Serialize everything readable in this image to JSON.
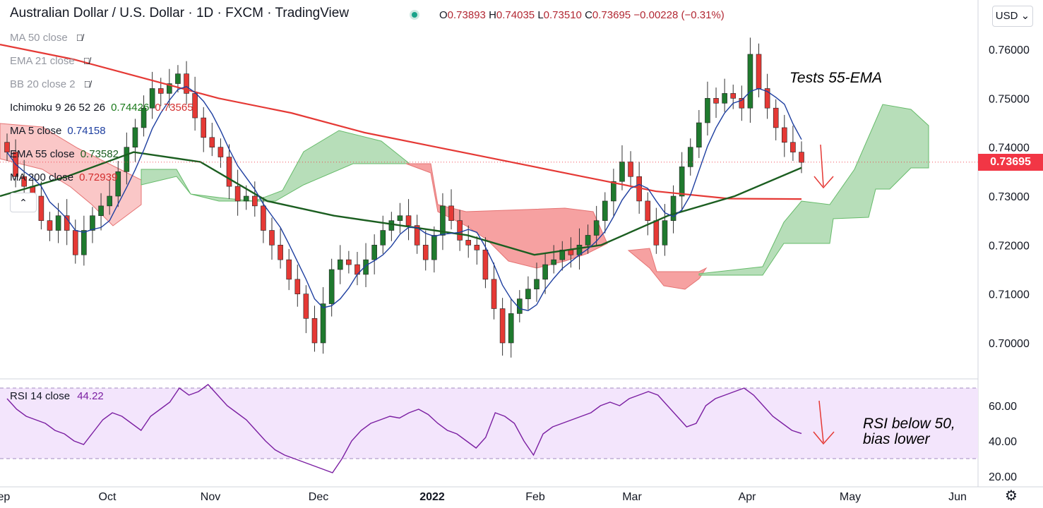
{
  "header": {
    "title": "Australian Dollar / U.S. Dollar · 1D · FXCM · TradingView",
    "ohlc": [
      {
        "k": "O",
        "v": "0.73893"
      },
      {
        "k": "H",
        "v": "0.74035"
      },
      {
        "k": "L",
        "v": "0.73510"
      },
      {
        "k": "C",
        "v": "0.73695"
      }
    ],
    "change": "−0.00228 (−0.31%)"
  },
  "legends": [
    {
      "label": "MA 50 close",
      "hidden": true,
      "icon": "eye-off-icon"
    },
    {
      "label": "EMA 21 close",
      "hidden": true,
      "icon": "eye-off-icon"
    },
    {
      "label": "BB 20 close 2",
      "hidden": true,
      "icon": "eye-off-icon"
    },
    {
      "label": "Ichimoku 9 26 52 26",
      "values": [
        {
          "v": "0.74426",
          "color": "#1b7a1b"
        },
        {
          "v": "0.73565",
          "color": "#d32f2f"
        }
      ]
    },
    {
      "label": "MA 5 close",
      "values": [
        {
          "v": "0.74158",
          "color": "#1e3fa0"
        }
      ]
    },
    {
      "label": "EMA 55 close",
      "values": [
        {
          "v": "0.73582",
          "color": "#1b5e20"
        }
      ]
    },
    {
      "label": "MA 200 close",
      "values": [
        {
          "v": "0.72939",
          "color": "#d32f2f"
        }
      ]
    }
  ],
  "currency_button": "USD",
  "collapse_icon": "chevron-up-icon",
  "settings_icon": "gear-icon",
  "last_price": "0.73695",
  "annotations": {
    "price": "Tests 55-EMA",
    "rsi_line1": "RSI below 50,",
    "rsi_line2": "bias lower"
  },
  "rsi_legend": {
    "label": "RSI 14 close",
    "value": "44.22"
  },
  "colors": {
    "up": "#1f7a2e",
    "down": "#e53935",
    "ma200": "#e53935",
    "ema55": "#1b5e20",
    "ma5": "#1e3fa0",
    "rsi": "#7b1fa2",
    "cloud_bull": "#a5d6a7",
    "cloud_bear": "#f48a8a"
  },
  "chart_data": [
    {
      "type": "candlestick",
      "title": "Australian Dollar / U.S. Dollar",
      "x_ticks": [
        "Sep",
        "Oct",
        "Nov",
        "Dec",
        "2022",
        "Feb",
        "Mar",
        "Apr",
        "May",
        "Jun"
      ],
      "y_ticks": [
        "0.76000",
        "0.75000",
        "0.74000",
        "0.73000",
        "0.72000",
        "0.71000",
        "0.70000"
      ],
      "ylim": [
        0.695,
        0.765
      ],
      "close_path": [
        0.739,
        0.734,
        0.732,
        0.73,
        0.725,
        0.723,
        0.726,
        0.723,
        0.718,
        0.723,
        0.726,
        0.728,
        0.73,
        0.735,
        0.74,
        0.744,
        0.748,
        0.752,
        0.751,
        0.753,
        0.755,
        0.751,
        0.746,
        0.742,
        0.74,
        0.738,
        0.732,
        0.729,
        0.73,
        0.728,
        0.723,
        0.72,
        0.717,
        0.713,
        0.71,
        0.705,
        0.7,
        0.708,
        0.715,
        0.717,
        0.716,
        0.714,
        0.717,
        0.72,
        0.723,
        0.725,
        0.726,
        0.724,
        0.72,
        0.717,
        0.722,
        0.728,
        0.725,
        0.721,
        0.72,
        0.719,
        0.713,
        0.707,
        0.7,
        0.706,
        0.709,
        0.711,
        0.713,
        0.716,
        0.717,
        0.719,
        0.718,
        0.72,
        0.722,
        0.725,
        0.729,
        0.733,
        0.737,
        0.734,
        0.729,
        0.725,
        0.72,
        0.725,
        0.73,
        0.736,
        0.74,
        0.745,
        0.75,
        0.749,
        0.751,
        0.75,
        0.748,
        0.759,
        0.752,
        0.748,
        0.744,
        0.741,
        0.739,
        0.7369
      ],
      "ma200": [
        0.761,
        0.758,
        0.754,
        0.75,
        0.747,
        0.743,
        0.74,
        0.737,
        0.734,
        0.731,
        0.7295,
        0.7294
      ],
      "ema55": [
        0.73,
        0.734,
        0.739,
        0.737,
        0.729,
        0.726,
        0.724,
        0.722,
        0.718,
        0.72,
        0.726,
        0.73,
        0.7358
      ],
      "ma5_last": 0.74158,
      "ichimoku_cloud": "shaded span between leading spans, green when bullish, red when bearish"
    },
    {
      "type": "line",
      "title": "RSI 14 close",
      "y_ticks": [
        "60.00",
        "40.00",
        "20.00"
      ],
      "ylim": [
        15,
        75
      ],
      "band": [
        30,
        70
      ],
      "values": [
        64,
        58,
        54,
        52,
        50,
        46,
        44,
        40,
        38,
        45,
        52,
        56,
        54,
        50,
        46,
        54,
        58,
        62,
        70,
        66,
        68,
        72,
        66,
        60,
        56,
        52,
        46,
        40,
        35,
        32,
        30,
        28,
        26,
        24,
        22,
        30,
        40,
        46,
        50,
        52,
        54,
        53,
        56,
        58,
        55,
        50,
        46,
        44,
        40,
        36,
        42,
        56,
        54,
        50,
        40,
        32,
        44,
        48,
        50,
        52,
        54,
        56,
        60,
        62,
        60,
        64,
        66,
        68,
        66,
        60,
        54,
        48,
        50,
        60,
        64,
        66,
        68,
        70,
        66,
        60,
        54,
        50,
        46,
        44.22
      ]
    }
  ]
}
